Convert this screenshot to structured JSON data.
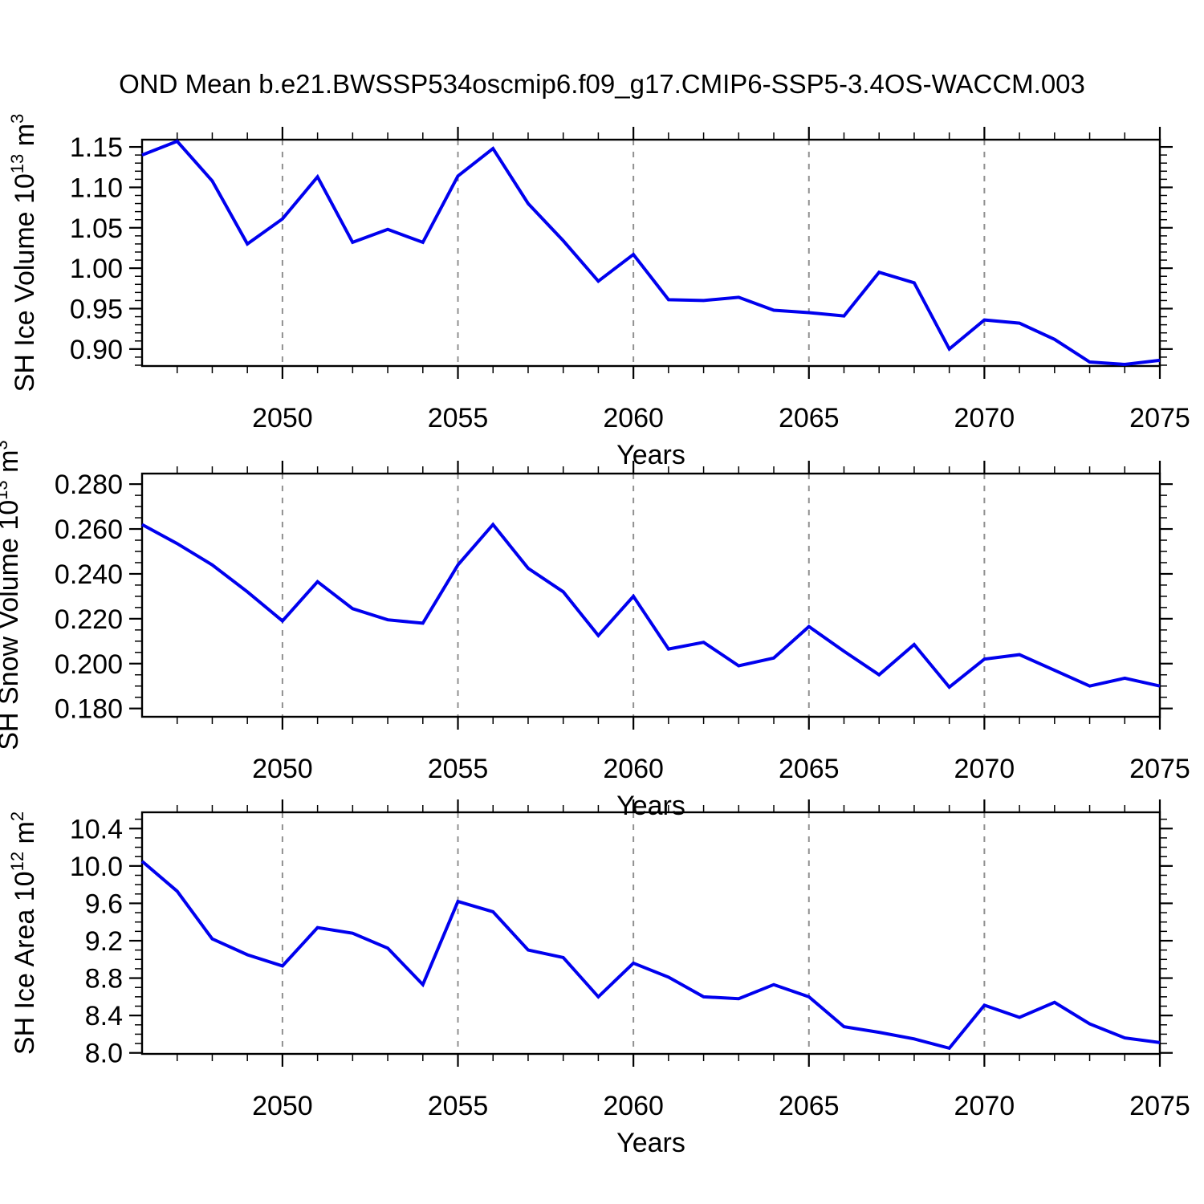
{
  "title": "OND Mean b.e21.BWSSP534oscmip6.f09_g17.CMIP6-SSP5-3.4OS-WACCM.003",
  "line_color": "#0000ee",
  "grid_color": "#909090",
  "axis_color": "#000000",
  "chart_data": [
    {
      "type": "line",
      "name": "sh-ice-volume",
      "title": "",
      "xlabel": "Years",
      "ylabel_text": "SH Ice Volume 10^13 m^3",
      "ylabel_parts": [
        "SH Ice Volume 10",
        "13",
        " m",
        "3"
      ],
      "x": [
        2046,
        2047,
        2048,
        2049,
        2050,
        2051,
        2052,
        2053,
        2054,
        2055,
        2056,
        2057,
        2058,
        2059,
        2060,
        2061,
        2062,
        2063,
        2064,
        2065,
        2066,
        2067,
        2068,
        2069,
        2070,
        2071,
        2072,
        2073,
        2074,
        2075
      ],
      "values": [
        1.14,
        1.157,
        1.108,
        1.03,
        1.061,
        1.113,
        1.032,
        1.048,
        1.032,
        1.114,
        1.148,
        1.08,
        1.034,
        0.984,
        1.017,
        0.961,
        0.96,
        0.964,
        0.948,
        0.945,
        0.941,
        0.995,
        0.982,
        0.9,
        0.936,
        0.932,
        0.912,
        0.884,
        0.881,
        0.886
      ],
      "xlim": [
        2046,
        2075
      ],
      "ylim": [
        0.879,
        1.159
      ],
      "yticks": [
        0.9,
        0.95,
        1.0,
        1.05,
        1.1,
        1.15
      ],
      "ytick_labels": [
        "0.90",
        "0.95",
        "1.00",
        "1.05",
        "1.10",
        "1.15"
      ],
      "y_minor_step": 0.01,
      "xticks": [
        2050,
        2055,
        2060,
        2065,
        2070,
        2075
      ],
      "xtick_labels": [
        "2050",
        "2055",
        "2060",
        "2065",
        "2070",
        "2075"
      ],
      "x_minor_step": 1,
      "gridlines_x": [
        2050,
        2055,
        2060,
        2065,
        2070
      ],
      "grid": "dashed-vertical",
      "legend": "none"
    },
    {
      "type": "line",
      "name": "sh-snow-volume",
      "title": "",
      "xlabel": "Years",
      "ylabel_text": "SH Snow Volume 10^13 m^3",
      "ylabel_parts": [
        "SH Snow Volume 10",
        "13",
        " m",
        "3"
      ],
      "x": [
        2046,
        2047,
        2048,
        2049,
        2050,
        2051,
        2052,
        2053,
        2054,
        2055,
        2056,
        2057,
        2058,
        2059,
        2060,
        2061,
        2062,
        2063,
        2064,
        2065,
        2066,
        2067,
        2068,
        2069,
        2070,
        2071,
        2072,
        2073,
        2074,
        2075
      ],
      "values": [
        0.262,
        0.2535,
        0.244,
        0.232,
        0.219,
        0.2365,
        0.2245,
        0.2195,
        0.218,
        0.244,
        0.262,
        0.2425,
        0.232,
        0.2125,
        0.23,
        0.2065,
        0.2095,
        0.199,
        0.2025,
        0.2165,
        0.2055,
        0.195,
        0.2085,
        0.1895,
        0.202,
        0.204,
        0.197,
        0.19,
        0.1935,
        0.19
      ],
      "xlim": [
        2046,
        2075
      ],
      "ylim": [
        0.1763,
        0.2847
      ],
      "yticks": [
        0.18,
        0.2,
        0.22,
        0.24,
        0.26,
        0.28
      ],
      "ytick_labels": [
        "0.180",
        "0.200",
        "0.220",
        "0.240",
        "0.260",
        "0.280"
      ],
      "y_minor_step": 0.005,
      "xticks": [
        2050,
        2055,
        2060,
        2065,
        2070,
        2075
      ],
      "xtick_labels": [
        "2050",
        "2055",
        "2060",
        "2065",
        "2070",
        "2075"
      ],
      "x_minor_step": 1,
      "gridlines_x": [
        2050,
        2055,
        2060,
        2065,
        2070
      ],
      "grid": "dashed-vertical",
      "legend": "none"
    },
    {
      "type": "line",
      "name": "sh-ice-area",
      "title": "",
      "xlabel": "Years",
      "ylabel_text": "SH Ice Area 10^12 m^2",
      "ylabel_parts": [
        "SH Ice Area 10",
        "12",
        " m",
        "2"
      ],
      "x": [
        2046,
        2047,
        2048,
        2049,
        2050,
        2051,
        2052,
        2053,
        2054,
        2055,
        2056,
        2057,
        2058,
        2059,
        2060,
        2061,
        2062,
        2063,
        2064,
        2065,
        2066,
        2067,
        2068,
        2069,
        2070,
        2071,
        2072,
        2073,
        2074,
        2075
      ],
      "values": [
        10.05,
        9.73,
        9.22,
        9.05,
        8.93,
        9.34,
        9.28,
        9.12,
        8.73,
        9.62,
        9.51,
        9.1,
        9.02,
        8.6,
        8.96,
        8.81,
        8.6,
        8.58,
        8.73,
        8.6,
        8.28,
        8.22,
        8.15,
        8.05,
        8.51,
        8.38,
        8.54,
        8.31,
        8.16,
        8.11
      ],
      "xlim": [
        2046,
        2075
      ],
      "ylim": [
        7.989,
        10.574
      ],
      "yticks": [
        8.0,
        8.4,
        8.8,
        9.2,
        9.6,
        10.0,
        10.4
      ],
      "ytick_labels": [
        "8.0",
        "8.4",
        "8.8",
        "9.2",
        "9.6",
        "10.0",
        "10.4"
      ],
      "y_minor_step": 0.1,
      "xticks": [
        2050,
        2055,
        2060,
        2065,
        2070,
        2075
      ],
      "xtick_labels": [
        "2050",
        "2055",
        "2060",
        "2065",
        "2070",
        "2075"
      ],
      "x_minor_step": 1,
      "gridlines_x": [
        2050,
        2055,
        2060,
        2065,
        2070
      ],
      "grid": "dashed-vertical",
      "legend": "none"
    }
  ]
}
